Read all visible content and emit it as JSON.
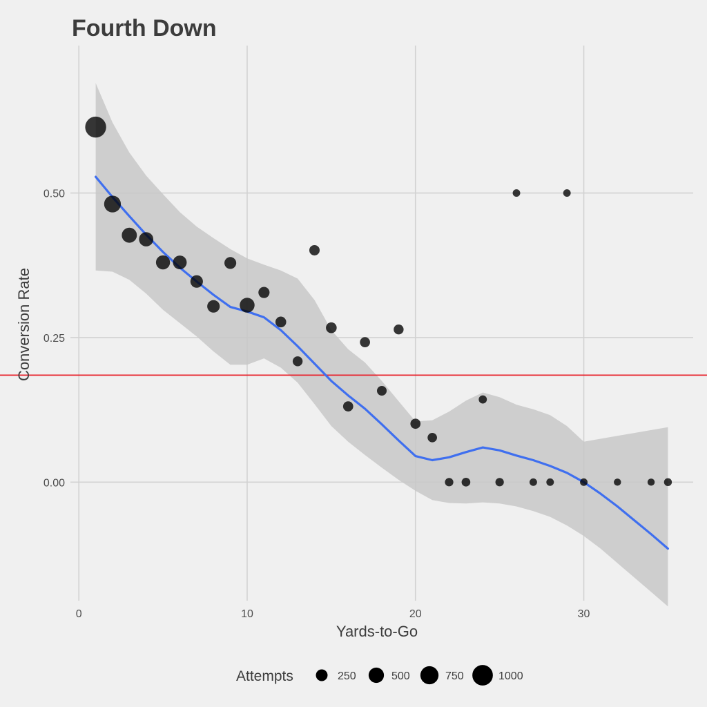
{
  "chart_data": {
    "type": "scatter",
    "title": "Fourth Down",
    "xlabel": "Yards-to-Go",
    "ylabel": "Conversion Rate",
    "xlim": [
      -0.5,
      36.5
    ],
    "ylim": [
      -0.205,
      0.755
    ],
    "x_ticks": [
      0,
      10,
      20,
      30
    ],
    "x_tick_labels": [
      "0",
      "10",
      "20",
      "30"
    ],
    "y_ticks": [
      0,
      0.25,
      0.5
    ],
    "y_tick_labels": [
      "0.00",
      "0.25",
      "0.50"
    ],
    "grid": true,
    "legend": {
      "title": "Attempts",
      "placement": "bottom",
      "sizes": [
        250,
        500,
        750,
        1000
      ],
      "labels": [
        "250",
        "500",
        "750",
        "1000"
      ]
    },
    "reference_line": {
      "y": 0.185,
      "color": "#e8202a"
    },
    "colors": {
      "points": "#000000",
      "smooth": "#3f6fef",
      "band": "#c8c8c8",
      "reference": "#e8202a",
      "background": "#f0f0f0",
      "grid": "#d2d2d2"
    },
    "points": [
      {
        "x": 1,
        "y": 0.614,
        "attempts": 1050
      },
      {
        "x": 2,
        "y": 0.481,
        "attempts": 620
      },
      {
        "x": 3,
        "y": 0.427,
        "attempts": 480
      },
      {
        "x": 4,
        "y": 0.42,
        "attempts": 420
      },
      {
        "x": 5,
        "y": 0.38,
        "attempts": 400
      },
      {
        "x": 6,
        "y": 0.38,
        "attempts": 380
      },
      {
        "x": 7,
        "y": 0.347,
        "attempts": 300
      },
      {
        "x": 8,
        "y": 0.304,
        "attempts": 300
      },
      {
        "x": 9,
        "y": 0.379,
        "attempts": 260
      },
      {
        "x": 10,
        "y": 0.306,
        "attempts": 460
      },
      {
        "x": 11,
        "y": 0.328,
        "attempts": 220
      },
      {
        "x": 12,
        "y": 0.277,
        "attempts": 200
      },
      {
        "x": 13,
        "y": 0.209,
        "attempts": 160
      },
      {
        "x": 14,
        "y": 0.401,
        "attempts": 180
      },
      {
        "x": 15,
        "y": 0.267,
        "attempts": 200
      },
      {
        "x": 16,
        "y": 0.131,
        "attempts": 170
      },
      {
        "x": 17,
        "y": 0.242,
        "attempts": 170
      },
      {
        "x": 18,
        "y": 0.158,
        "attempts": 150
      },
      {
        "x": 19,
        "y": 0.264,
        "attempts": 160
      },
      {
        "x": 20,
        "y": 0.101,
        "attempts": 170
      },
      {
        "x": 21,
        "y": 0.077,
        "attempts": 140
      },
      {
        "x": 22,
        "y": 0.0,
        "attempts": 100
      },
      {
        "x": 23,
        "y": 0.0,
        "attempts": 110
      },
      {
        "x": 24,
        "y": 0.143,
        "attempts": 90
      },
      {
        "x": 25,
        "y": 0.0,
        "attempts": 100
      },
      {
        "x": 26,
        "y": 0.5,
        "attempts": 70
      },
      {
        "x": 27,
        "y": 0.0,
        "attempts": 70
      },
      {
        "x": 28,
        "y": 0.0,
        "attempts": 70
      },
      {
        "x": 29,
        "y": 0.5,
        "attempts": 70
      },
      {
        "x": 30,
        "y": 0.0,
        "attempts": 70
      },
      {
        "x": 32,
        "y": 0.0,
        "attempts": 60
      },
      {
        "x": 34,
        "y": 0.0,
        "attempts": 60
      },
      {
        "x": 35,
        "y": 0.0,
        "attempts": 80
      }
    ],
    "smooth": {
      "x": [
        1,
        2,
        3,
        4,
        5,
        6,
        7,
        8,
        9,
        10,
        11,
        12,
        13,
        14,
        15,
        16,
        17,
        18,
        19,
        20,
        21,
        22,
        23,
        24,
        25,
        26,
        27,
        28,
        29,
        30,
        31,
        32,
        33,
        34,
        35
      ],
      "y": [
        0.528,
        0.493,
        0.46,
        0.428,
        0.398,
        0.371,
        0.347,
        0.324,
        0.303,
        0.295,
        0.285,
        0.263,
        0.235,
        0.205,
        0.175,
        0.15,
        0.127,
        0.1,
        0.072,
        0.045,
        0.038,
        0.043,
        0.052,
        0.06,
        0.055,
        0.046,
        0.038,
        0.028,
        0.016,
        0.0,
        -0.02,
        -0.042,
        -0.066,
        -0.09,
        -0.115
      ],
      "lower": [
        0.366,
        0.364,
        0.35,
        0.326,
        0.298,
        0.275,
        0.252,
        0.226,
        0.203,
        0.203,
        0.214,
        0.198,
        0.172,
        0.135,
        0.097,
        0.07,
        0.047,
        0.025,
        0.004,
        -0.015,
        -0.031,
        -0.036,
        -0.037,
        -0.035,
        -0.037,
        -0.042,
        -0.05,
        -0.06,
        -0.075,
        -0.093,
        -0.115,
        -0.14,
        -0.165,
        -0.19,
        -0.215
      ],
      "upper": [
        0.69,
        0.622,
        0.57,
        0.53,
        0.498,
        0.467,
        0.442,
        0.422,
        0.403,
        0.387,
        0.376,
        0.366,
        0.352,
        0.315,
        0.263,
        0.23,
        0.207,
        0.175,
        0.14,
        0.105,
        0.107,
        0.122,
        0.141,
        0.155,
        0.147,
        0.134,
        0.126,
        0.116,
        0.097,
        0.07,
        0.075,
        0.08,
        0.085,
        0.09,
        0.095
      ]
    }
  }
}
